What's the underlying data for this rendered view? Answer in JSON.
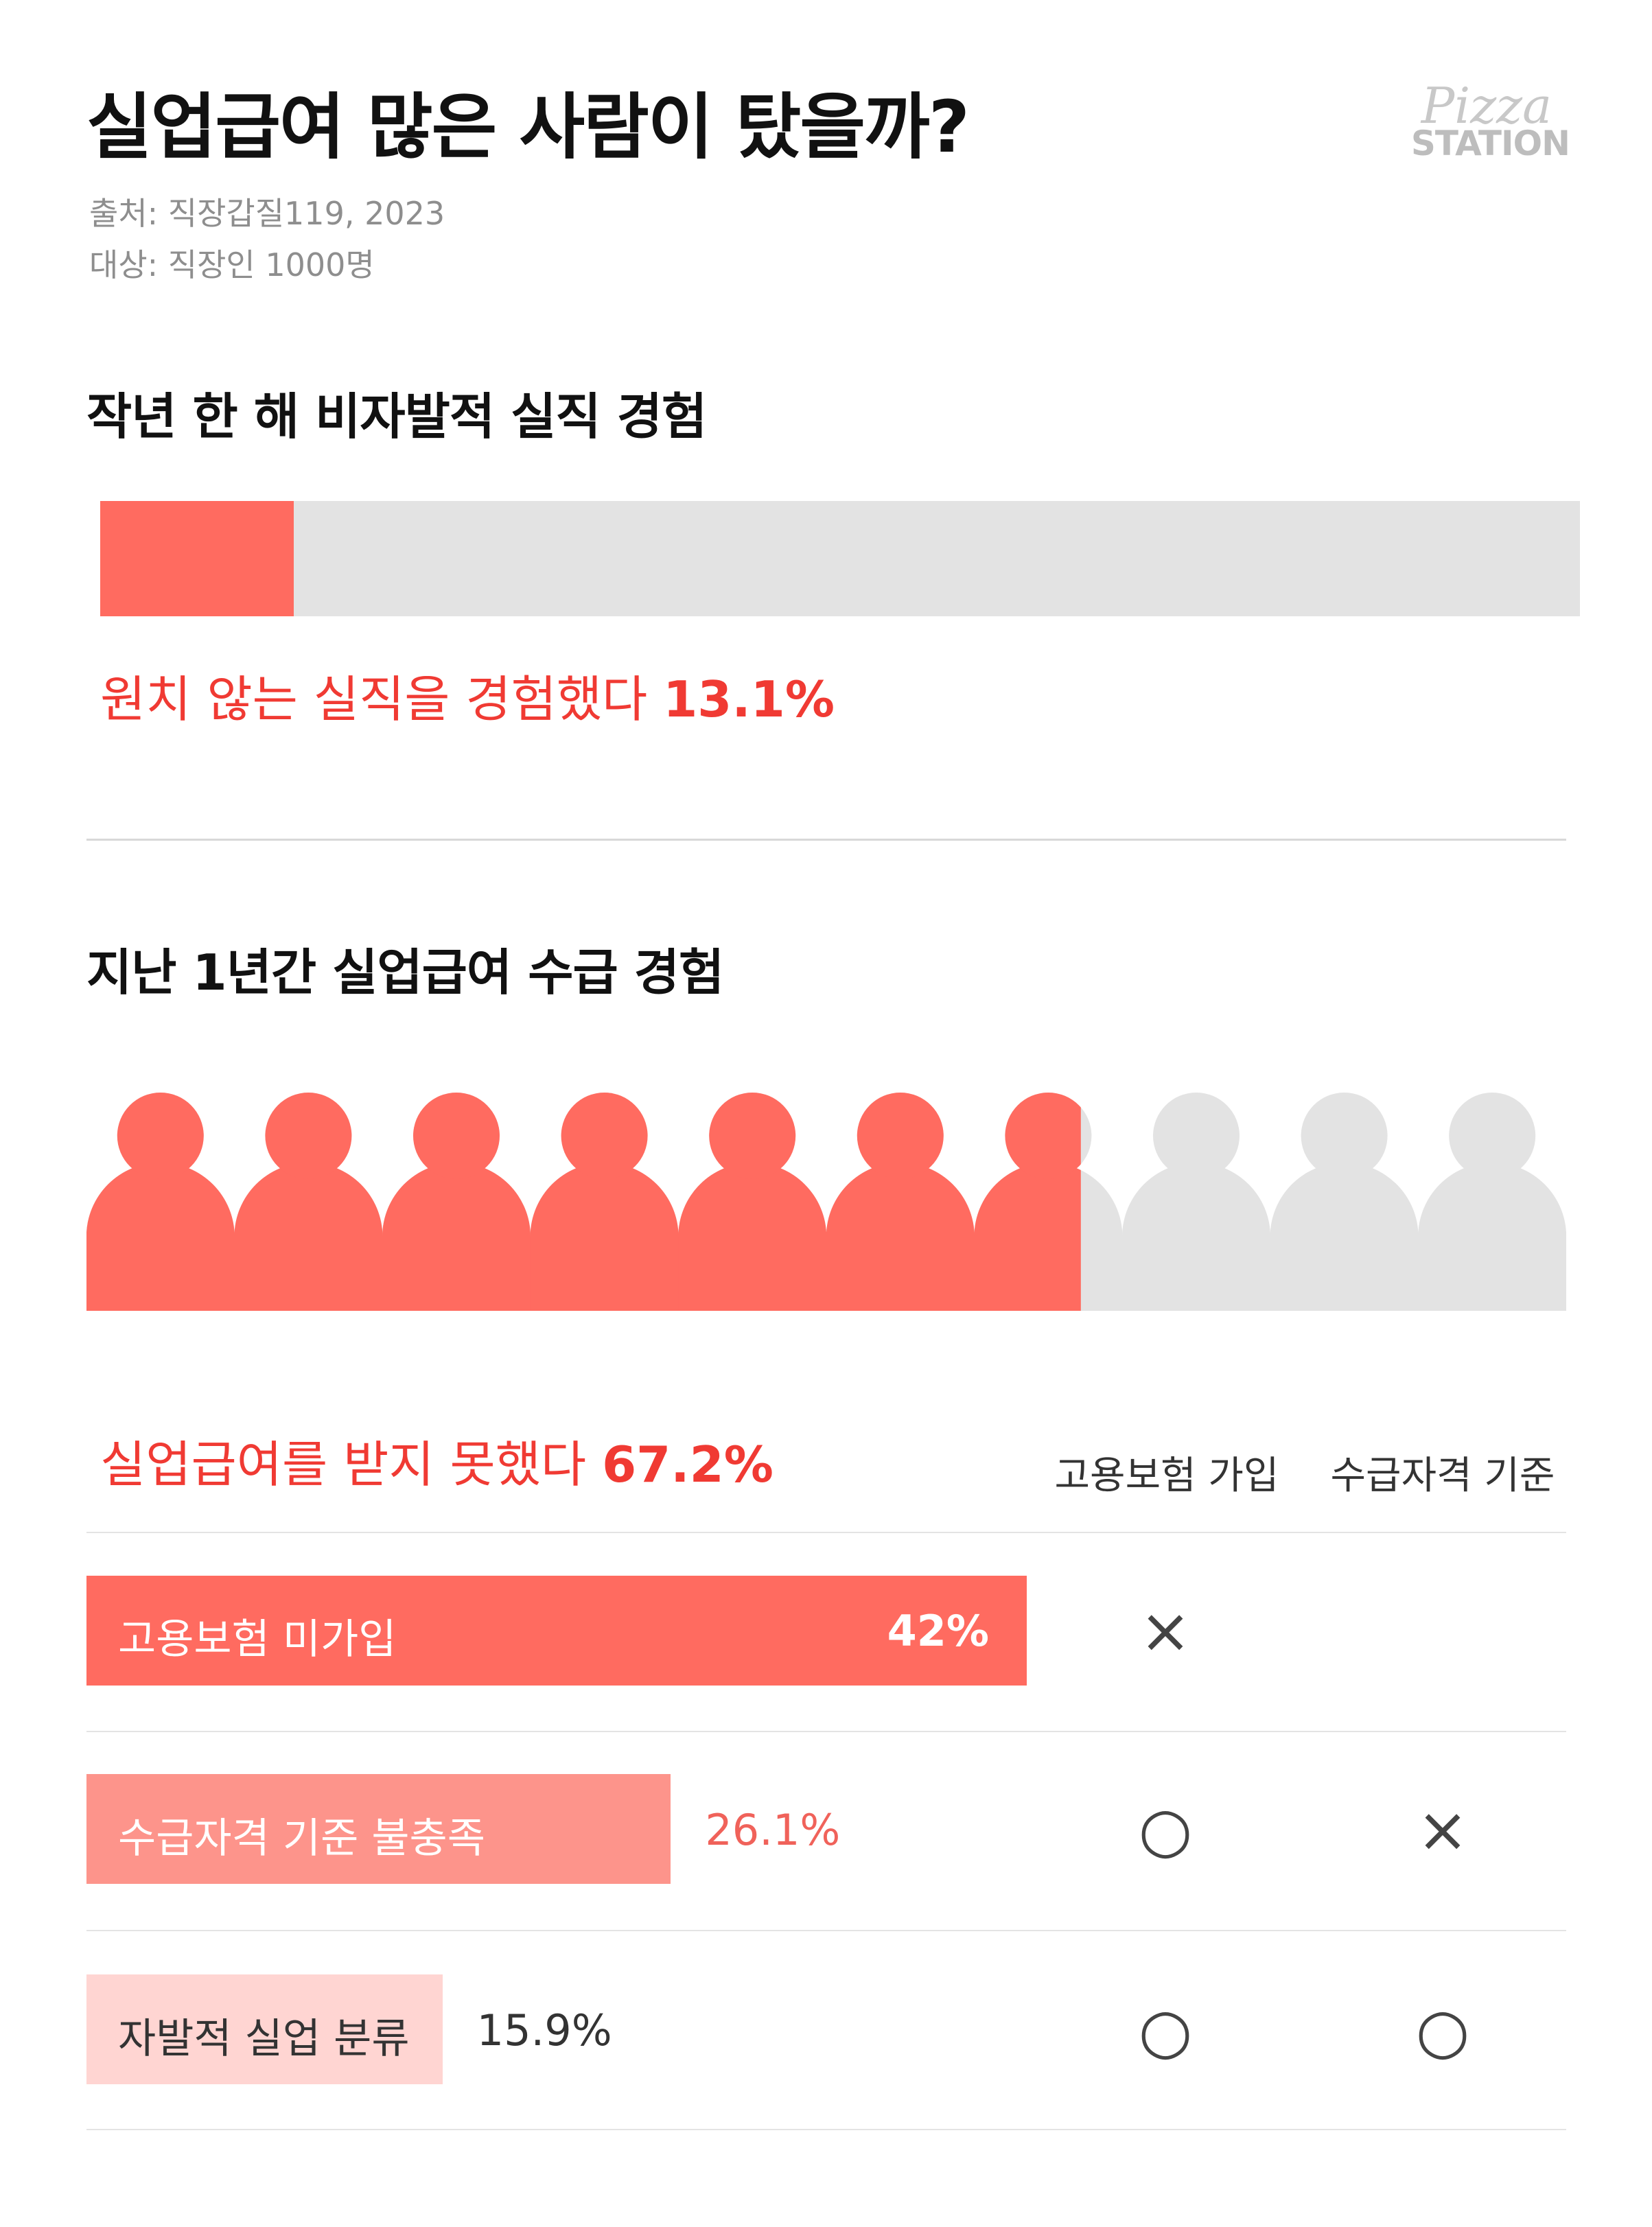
{
  "title": "실업급여 많은 사람이 탔을까?",
  "logo": {
    "script": "Pizza",
    "word": "STATION"
  },
  "source": "출처: 직장갑질119, 2023",
  "sample": "대상: 직장인 1000명",
  "section1": {
    "title": "작년 한 해 비자발적 실직 경험",
    "caption_text": "원치 않는 실직을 경험했다 ",
    "caption_value": "13.1%"
  },
  "section2": {
    "title": "지난 1년간 실업급여 수급 경험",
    "caption_text": "실업급여를 받지 못했다 ",
    "caption_value": "67.2%",
    "col_headers": [
      "고용보험 가입",
      "수급자격 기준"
    ]
  },
  "colors": {
    "accent": "#ff6b60",
    "accent_text": "#f03a33",
    "medium": "#fd948b",
    "light": "#ffd5d2",
    "grey": "#e3e3e3"
  },
  "chart_data": [
    {
      "type": "bar",
      "categories": [
        "원치 않는 실직을 경험했다"
      ],
      "values": [
        13.1
      ],
      "unit": "%",
      "xlim": [
        0,
        100
      ]
    },
    {
      "type": "icon-array",
      "total_icons": 10,
      "highlighted_fraction": 0.672,
      "value_label": "67.2%"
    },
    {
      "type": "bar",
      "categories": [
        "고용보험 미가입",
        "수급자격 기준 불충족",
        "자발적 실업 분류"
      ],
      "values": [
        42,
        26.1,
        15.9
      ],
      "value_labels": [
        "42%",
        "26.1%",
        "15.9%"
      ],
      "unit": "%",
      "columns": [
        "고용보험 가입",
        "수급자격 기준"
      ],
      "matrix": [
        [
          "×",
          ""
        ],
        [
          "○",
          "×"
        ],
        [
          "○",
          "○"
        ]
      ]
    }
  ],
  "rows": [
    {
      "label": "고용보험 미가입",
      "value": "42%",
      "marks": [
        "×",
        ""
      ]
    },
    {
      "label": "수급자격 기준 불충족",
      "value": "26.1%",
      "marks": [
        "○",
        "×"
      ]
    },
    {
      "label": "자발적 실업 분류",
      "value": "15.9%",
      "marks": [
        "○",
        "○"
      ]
    }
  ]
}
